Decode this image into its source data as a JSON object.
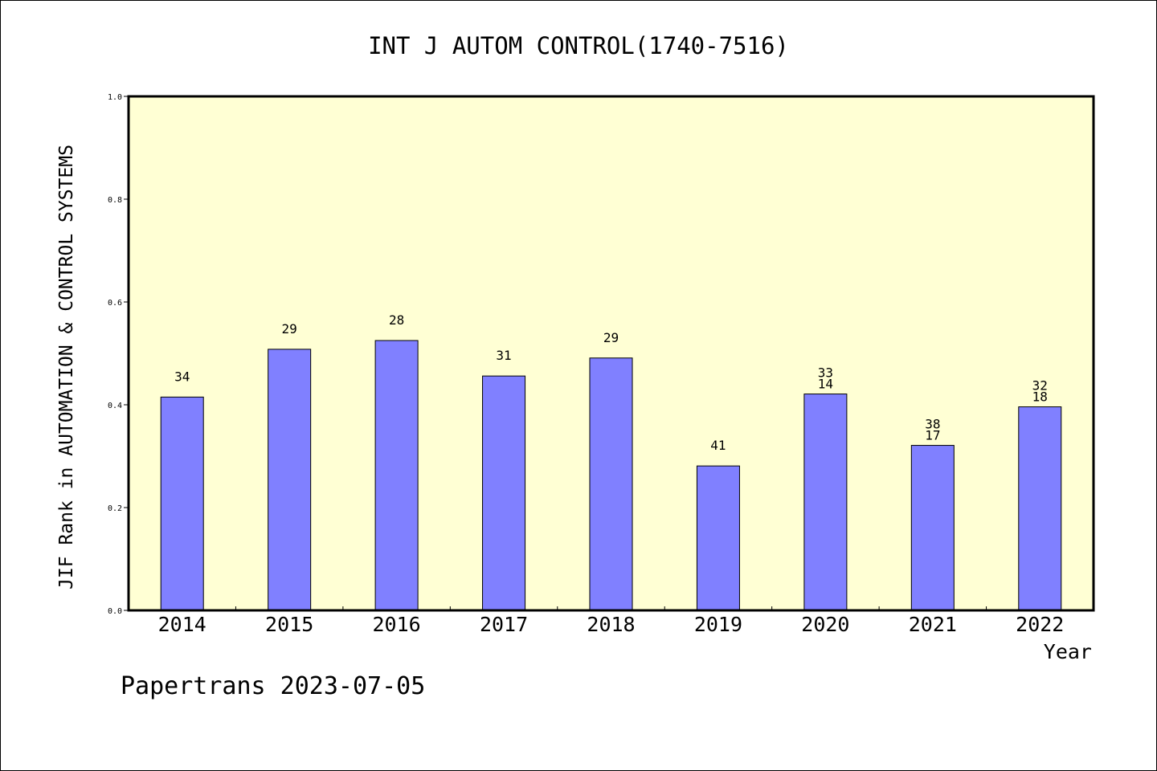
{
  "chart_data": {
    "type": "bar",
    "title": "INT J AUTOM CONTROL(1740-7516)",
    "xlabel": "Year",
    "ylabel": "JIF Rank in AUTOMATION & CONTROL SYSTEMS",
    "ylim": [
      0,
      1.0
    ],
    "yticks": [
      "0.0",
      "0.2",
      "0.4",
      "0.6",
      "0.8",
      "1.0"
    ],
    "categories": [
      "2014",
      "2015",
      "2016",
      "2017",
      "2018",
      "2019",
      "2020",
      "2021",
      "2022"
    ],
    "values": [
      0.415,
      0.508,
      0.525,
      0.456,
      0.491,
      0.281,
      0.421,
      0.321,
      0.396
    ],
    "labels": [
      [
        "34"
      ],
      [
        "29"
      ],
      [
        "28"
      ],
      [
        "31"
      ],
      [
        "29"
      ],
      [
        "41"
      ],
      [
        "33",
        "14"
      ],
      [
        "38",
        "17"
      ],
      [
        "32",
        "18"
      ]
    ],
    "grid": false,
    "colors": {
      "bar": "#8080ff",
      "plot_bg": "#ffffd4"
    }
  },
  "footer": "Papertrans 2023-07-05"
}
